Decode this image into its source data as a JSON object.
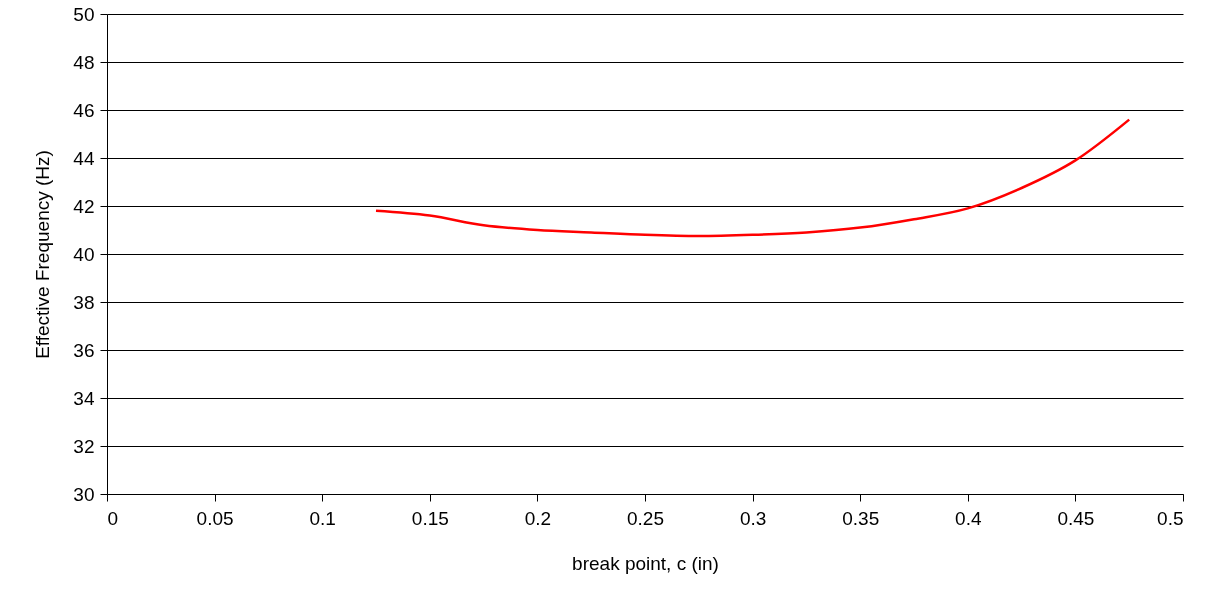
{
  "chart_data": {
    "type": "line",
    "xlabel": "break point, c (in)",
    "ylabel": "Effective Frequency (Hz)",
    "x": [
      0.125,
      0.15,
      0.175,
      0.2,
      0.225,
      0.25,
      0.275,
      0.3,
      0.325,
      0.35,
      0.375,
      0.4,
      0.425,
      0.45,
      0.475
    ],
    "series": [
      {
        "color": "#ff0000",
        "values": [
          41.8,
          41.6,
          41.2,
          41.0,
          40.9,
          40.8,
          40.75,
          40.8,
          40.9,
          41.1,
          41.45,
          41.9,
          42.75,
          43.9,
          45.6
        ]
      }
    ],
    "xlim": [
      0,
      0.5
    ],
    "xticks": [
      0,
      0.05,
      0.1,
      0.15,
      0.2,
      0.25,
      0.3,
      0.35,
      0.4,
      0.45,
      0.5
    ],
    "ylim": [
      30,
      50
    ],
    "yticks": [
      30,
      32,
      34,
      36,
      38,
      40,
      42,
      44,
      46,
      48,
      50
    ],
    "grid": "y",
    "marker": "none",
    "line_style": "solid"
  }
}
